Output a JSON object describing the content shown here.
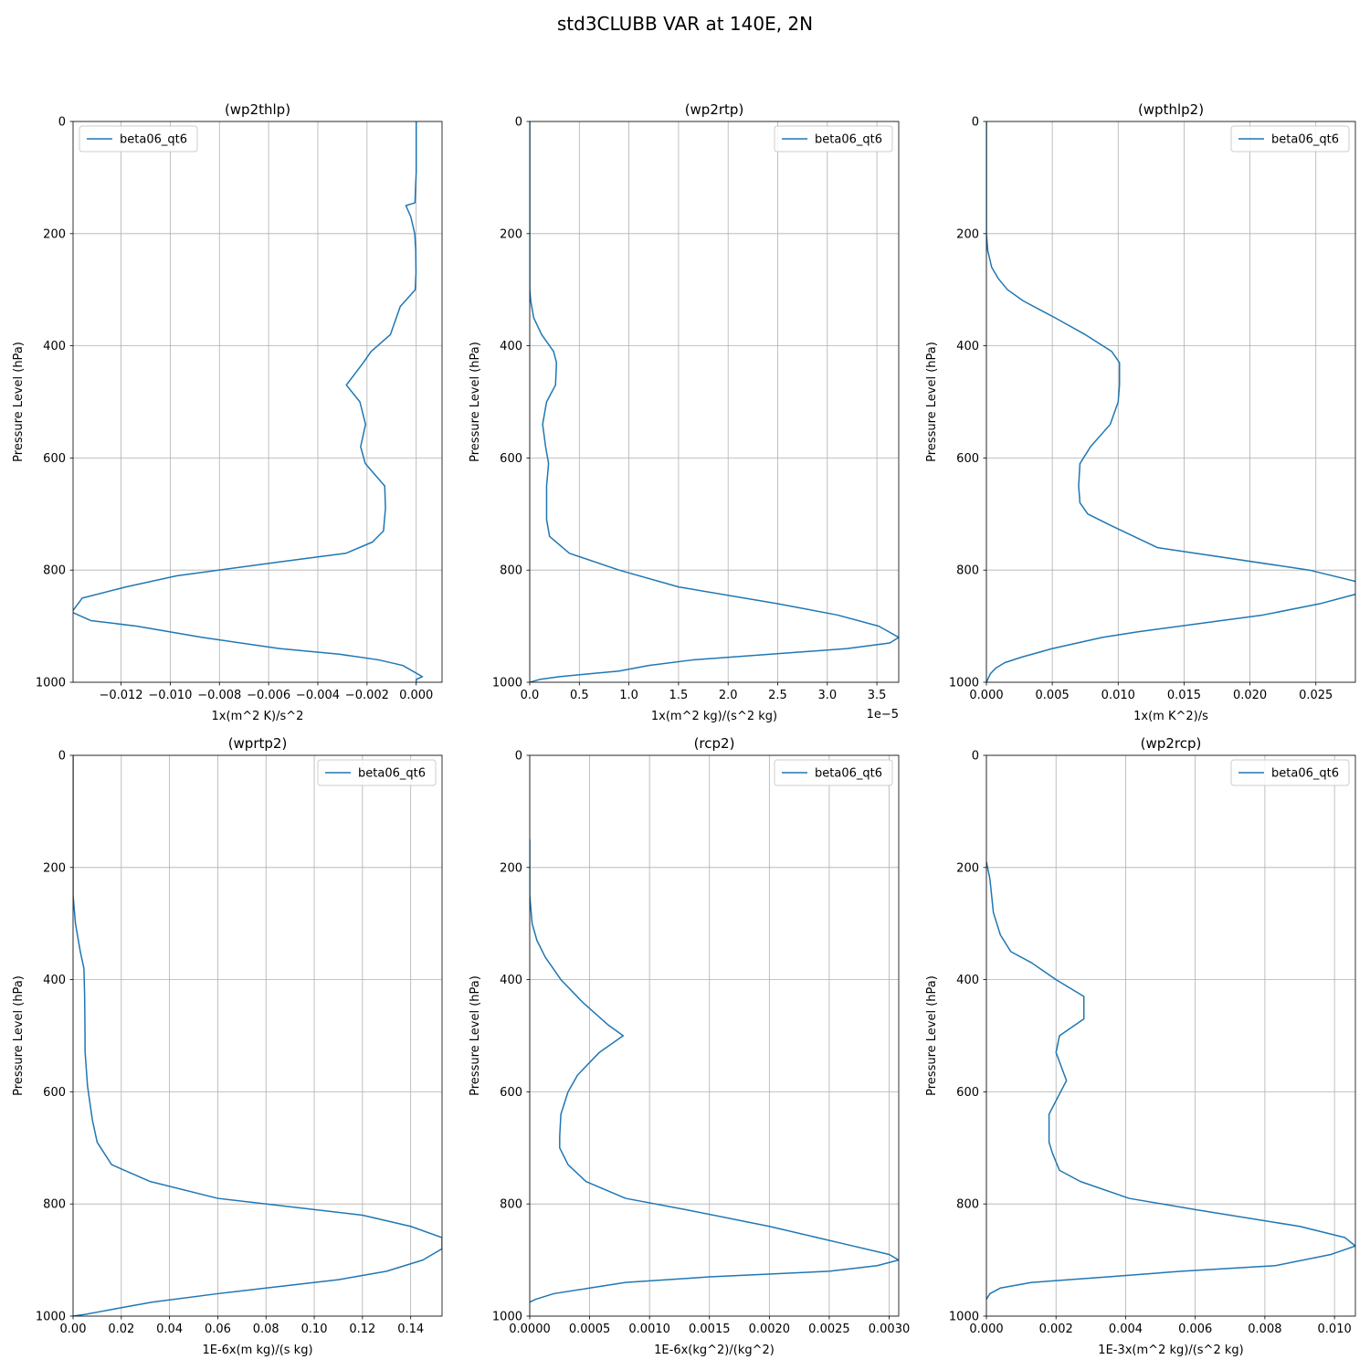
{
  "figure": {
    "title": "std3CLUBB VAR at 140E, 2N",
    "line_color": "#1f77b4",
    "grid_color": "#b0b0b0"
  },
  "chart_data": [
    {
      "type": "line",
      "title": "(wp2thlp)",
      "xlabel": "1x(m^2 K)/s^2",
      "ylabel": "Pressure Level (hPa)",
      "xlim": [
        -0.01395,
        0.00105
      ],
      "ylim": [
        1000,
        0
      ],
      "xticks": [
        -0.012,
        -0.01,
        -0.008,
        -0.006,
        -0.004,
        -0.002,
        0.0
      ],
      "xtick_labels": [
        "−0.012",
        "−0.010",
        "−0.008",
        "−0.006",
        "−0.004",
        "−0.002",
        "0.000"
      ],
      "yticks": [
        0,
        200,
        400,
        600,
        800,
        1000
      ],
      "ytick_labels": [
        "0",
        "200",
        "400",
        "600",
        "800",
        "1000"
      ],
      "offset_label": "",
      "legend_loc": "upper left",
      "grid": true,
      "series": [
        {
          "name": "beta06_qt6",
          "x": [
            0.0,
            0.0,
            -3e-05,
            -5e-05,
            -0.00042,
            -0.00022,
            -6e-05,
            -2e-05,
            -1e-05,
            -4e-05,
            -0.00065,
            -0.00105,
            -0.00183,
            -0.00215,
            -0.00284,
            -0.00229,
            -0.00206,
            -0.00226,
            -0.00207,
            -0.00128,
            -0.00125,
            -0.00133,
            -0.00178,
            -0.00286,
            -0.00549,
            -0.00972,
            -0.0118,
            -0.01358,
            -0.014,
            -0.01323,
            -0.01135,
            -0.0087,
            -0.00555,
            -0.00313,
            -0.00154,
            -0.00055,
            0.00025,
            0.0,
            0.0
          ],
          "y": [
            0,
            90,
            120,
            145,
            150,
            170,
            200,
            230,
            270,
            300,
            330,
            380,
            410,
            430,
            470,
            500,
            540,
            580,
            610,
            650,
            690,
            730,
            750,
            770,
            785,
            810,
            830,
            850,
            875,
            890,
            900,
            920,
            940,
            950,
            960,
            970,
            990,
            995,
            1000
          ]
        }
      ]
    },
    {
      "type": "line",
      "title": "(wp2rtp)",
      "xlabel": "1x(m^2 kg)/(s^2 kg)",
      "ylabel": "Pressure Level (hPa)",
      "xlim": [
        0,
        3.72
      ],
      "ylim": [
        1000,
        0
      ],
      "xticks": [
        0,
        0.5,
        1.0,
        1.5,
        2.0,
        2.5,
        3.0,
        3.5
      ],
      "xtick_labels": [
        "0.0",
        "0.5",
        "1.0",
        "1.5",
        "2.0",
        "2.5",
        "3.0",
        "3.5"
      ],
      "yticks": [
        0,
        200,
        400,
        600,
        800,
        1000
      ],
      "ytick_labels": [
        "0",
        "200",
        "400",
        "600",
        "800",
        "1000"
      ],
      "offset_label": "1e−5",
      "legend_loc": "upper right",
      "grid": true,
      "series": [
        {
          "name": "beta06_qt6",
          "x": [
            0.0,
            0.0,
            0.0,
            0.0,
            0.01,
            0.04,
            0.12,
            0.24,
            0.27,
            0.26,
            0.17,
            0.13,
            0.16,
            0.19,
            0.17,
            0.17,
            0.2,
            0.4,
            0.9,
            1.5,
            2.5,
            3.1,
            3.52,
            3.72,
            3.63,
            3.2,
            1.65,
            1.2,
            0.9,
            0.6,
            0.3,
            0.1,
            0.0
          ],
          "y": [
            0,
            100,
            200,
            300,
            320,
            350,
            380,
            410,
            430,
            470,
            500,
            540,
            580,
            610,
            650,
            710,
            740,
            770,
            800,
            830,
            860,
            880,
            900,
            920,
            930,
            940,
            960,
            970,
            980,
            985,
            990,
            995,
            1000
          ]
        }
      ]
    },
    {
      "type": "line",
      "title": "(wpthlp2)",
      "xlabel": "1x(m K^2)/s",
      "ylabel": "Pressure Level (hPa)",
      "xlim": [
        0,
        0.028
      ],
      "ylim": [
        1000,
        0
      ],
      "xticks": [
        0,
        0.005,
        0.01,
        0.015,
        0.02,
        0.025
      ],
      "xtick_labels": [
        "0.000",
        "0.005",
        "0.010",
        "0.015",
        "0.020",
        "0.025"
      ],
      "yticks": [
        0,
        200,
        400,
        600,
        800,
        1000
      ],
      "ytick_labels": [
        "0",
        "200",
        "400",
        "600",
        "800",
        "1000"
      ],
      "offset_label": "",
      "legend_loc": "upper right",
      "grid": true,
      "series": [
        {
          "name": "beta06_qt6",
          "x": [
            0.0,
            0.0,
            0.0001,
            0.0004,
            0.0009,
            0.0016,
            0.0028,
            0.0052,
            0.0075,
            0.0095,
            0.0101,
            0.0101,
            0.01,
            0.0094,
            0.0079,
            0.0071,
            0.007,
            0.0071,
            0.0077,
            0.0094,
            0.013,
            0.0245,
            0.028,
            0.0285,
            0.0253,
            0.021,
            0.0115,
            0.0088,
            0.005,
            0.0027,
            0.0014,
            0.0007,
            0.0003,
            0.0
          ],
          "y": [
            0,
            200,
            230,
            260,
            280,
            300,
            320,
            350,
            380,
            410,
            430,
            470,
            500,
            540,
            580,
            610,
            650,
            680,
            700,
            720,
            760,
            800,
            820,
            840,
            860,
            880,
            910,
            920,
            940,
            955,
            965,
            975,
            985,
            1000
          ]
        }
      ]
    },
    {
      "type": "line",
      "title": "(wprtp2)",
      "xlabel": "1E-6x(m kg)/(s kg)",
      "ylabel": "Pressure Level (hPa)",
      "xlim": [
        0,
        0.153
      ],
      "ylim": [
        1000,
        0
      ],
      "xticks": [
        0,
        0.02,
        0.04,
        0.06,
        0.08,
        0.1,
        0.12,
        0.14
      ],
      "xtick_labels": [
        "0.00",
        "0.02",
        "0.04",
        "0.06",
        "0.08",
        "0.10",
        "0.12",
        "0.14"
      ],
      "yticks": [
        0,
        200,
        400,
        600,
        800,
        1000
      ],
      "ytick_labels": [
        "0",
        "200",
        "400",
        "600",
        "800",
        "1000"
      ],
      "offset_label": "",
      "legend_loc": "upper right",
      "grid": true,
      "series": [
        {
          "name": "beta06_qt6",
          "x": [
            0.0,
            0.0,
            0.001,
            0.003,
            0.0045,
            0.0048,
            0.0049,
            0.005,
            0.006,
            0.008,
            0.01,
            0.016,
            0.032,
            0.06,
            0.12,
            0.14,
            0.153,
            0.153,
            0.145,
            0.13,
            0.11,
            0.08,
            0.06,
            0.033,
            0.02,
            0.01,
            0.005,
            0.0015,
            0.0
          ],
          "y": [
            0,
            250,
            300,
            350,
            380,
            430,
            470,
            530,
            590,
            650,
            690,
            730,
            760,
            790,
            820,
            840,
            860,
            880,
            900,
            920,
            935,
            950,
            960,
            975,
            985,
            993,
            997,
            999,
            1000
          ]
        }
      ]
    },
    {
      "type": "line",
      "title": "(rcp2)",
      "xlabel": "1E-6x(kg^2)/(kg^2)",
      "ylabel": "Pressure Level (hPa)",
      "xlim": [
        0,
        0.00308
      ],
      "ylim": [
        1000,
        0
      ],
      "xticks": [
        0,
        0.0005,
        0.001,
        0.0015,
        0.002,
        0.0025,
        0.003
      ],
      "xtick_labels": [
        "0.0000",
        "0.0005",
        "0.0010",
        "0.0015",
        "0.0020",
        "0.0025",
        "0.0030"
      ],
      "yticks": [
        0,
        200,
        400,
        600,
        800,
        1000
      ],
      "ytick_labels": [
        "0",
        "200",
        "400",
        "600",
        "800",
        "1000"
      ],
      "offset_label": "",
      "legend_loc": "upper right",
      "grid": true,
      "series": [
        {
          "name": "beta06_qt6",
          "x": [
            0.0,
            0.0,
            2e-05,
            6e-05,
            0.00013,
            0.00026,
            0.00044,
            0.00065,
            0.00078,
            0.00058,
            0.0004,
            0.00032,
            0.00026,
            0.00025,
            0.00025,
            0.00032,
            0.00047,
            0.0008,
            0.0013,
            0.002,
            0.0026,
            0.003,
            0.00308,
            0.0029,
            0.0025,
            0.0015,
            0.0008,
            0.0005,
            0.0002,
            5e-05,
            0.0
          ],
          "y": [
            150,
            250,
            300,
            330,
            360,
            400,
            440,
            480,
            500,
            530,
            570,
            600,
            640,
            680,
            700,
            730,
            760,
            790,
            810,
            840,
            870,
            890,
            900,
            910,
            920,
            930,
            940,
            950,
            960,
            970,
            975
          ]
        }
      ]
    },
    {
      "type": "line",
      "title": "(wp2rcp)",
      "xlabel": "1E-3x(m^2 kg)/(s^2 kg)",
      "ylabel": "Pressure Level (hPa)",
      "xlim": [
        0,
        0.0106
      ],
      "ylim": [
        1000,
        0
      ],
      "xticks": [
        0,
        0.002,
        0.004,
        0.006,
        0.008,
        0.01
      ],
      "xtick_labels": [
        "0.000",
        "0.002",
        "0.004",
        "0.006",
        "0.008",
        "0.010"
      ],
      "yticks": [
        0,
        200,
        400,
        600,
        800,
        1000
      ],
      "ytick_labels": [
        "0",
        "200",
        "400",
        "600",
        "800",
        "1000"
      ],
      "offset_label": "",
      "legend_loc": "upper right",
      "grid": true,
      "series": [
        {
          "name": "beta06_qt6",
          "x": [
            0.0,
            0.0001,
            0.00015,
            0.0002,
            0.0003,
            0.0004,
            0.0007,
            0.0013,
            0.002,
            0.0028,
            0.0028,
            0.0021,
            0.002,
            0.0023,
            0.0018,
            0.0018,
            0.0019,
            0.0021,
            0.0027,
            0.0041,
            0.006,
            0.009,
            0.0103,
            0.0106,
            0.0099,
            0.0083,
            0.0056,
            0.0035,
            0.0013,
            0.0004,
            0.0001,
            0.0
          ],
          "y": [
            190,
            220,
            250,
            280,
            300,
            320,
            350,
            370,
            400,
            430,
            470,
            500,
            530,
            580,
            640,
            690,
            710,
            740,
            760,
            790,
            810,
            840,
            860,
            875,
            890,
            910,
            920,
            930,
            940,
            950,
            960,
            970
          ]
        }
      ]
    }
  ]
}
